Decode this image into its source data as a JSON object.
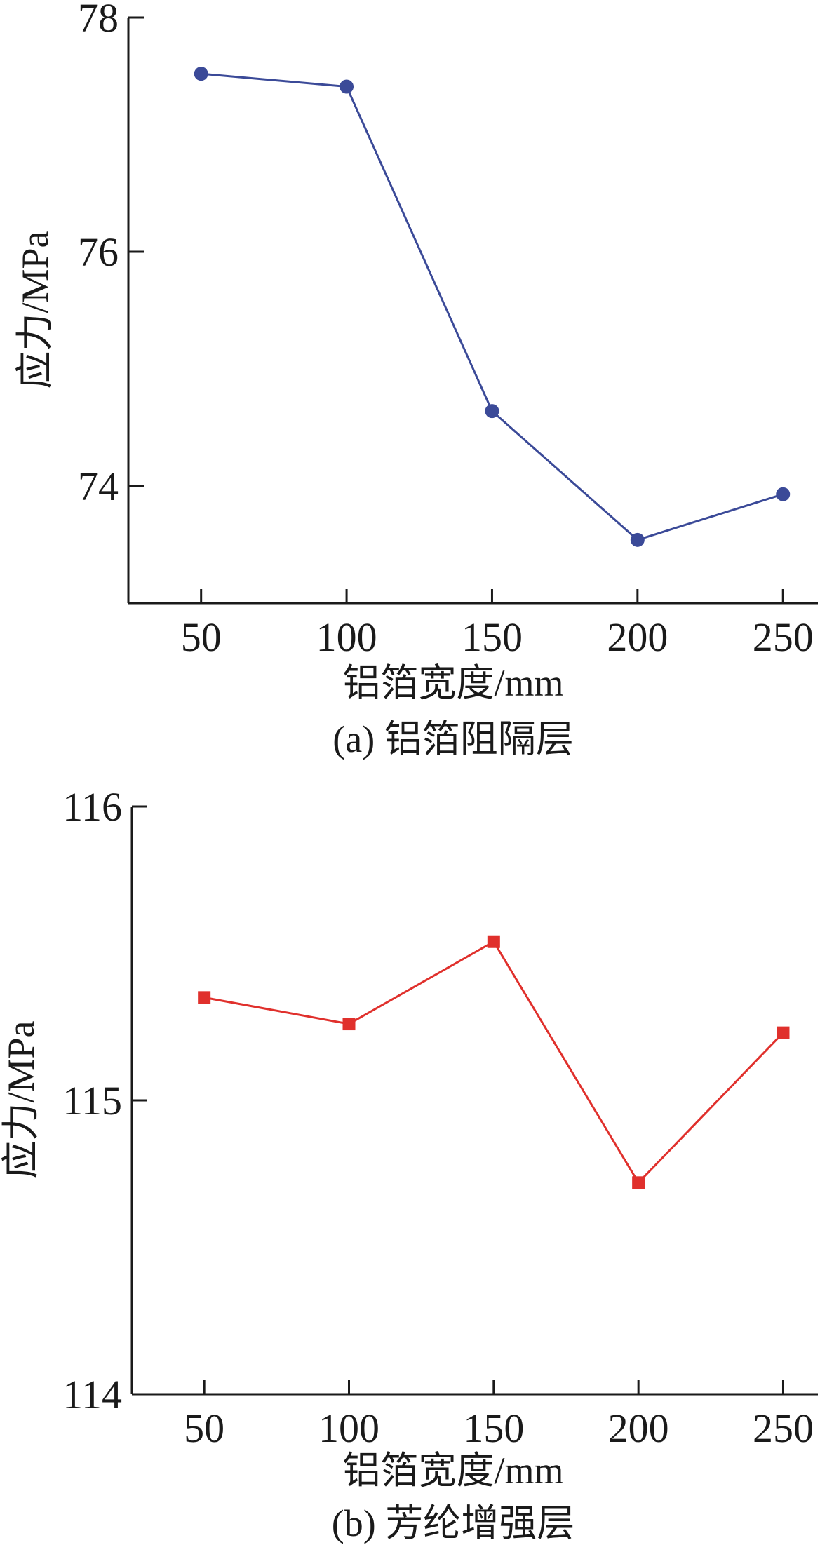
{
  "chart_data": [
    {
      "type": "line",
      "caption": "(a) 铝箔阻隔层",
      "xlabel": "铝箔宽度/mm",
      "ylabel": "应力/MPa",
      "x": [
        50,
        100,
        150,
        200,
        250
      ],
      "xticks": [
        "50",
        "100",
        "150",
        "200",
        "250"
      ],
      "xlim": [
        25,
        262
      ],
      "yticks": [
        "74",
        "76",
        "78"
      ],
      "ytick_values": [
        74,
        76,
        78
      ],
      "ylim": [
        73,
        78
      ],
      "grid": false,
      "series": [
        {
          "values": [
            77.52,
            77.41,
            74.64,
            73.54,
            73.93
          ],
          "color": "#3b4a98",
          "marker": "circle"
        }
      ]
    },
    {
      "type": "line",
      "caption": "(b) 芳纶增强层",
      "xlabel": "铝箔宽度/mm",
      "ylabel": "应力/MPa",
      "x": [
        50,
        100,
        150,
        200,
        250
      ],
      "xticks": [
        "50",
        "100",
        "150",
        "200",
        "250"
      ],
      "xlim": [
        25,
        262
      ],
      "yticks": [
        "114",
        "115",
        "116"
      ],
      "ytick_values": [
        114,
        115,
        116
      ],
      "ylim": [
        114,
        116
      ],
      "grid": false,
      "series": [
        {
          "values": [
            115.35,
            115.26,
            115.54,
            114.72,
            115.23
          ],
          "color": "#e0302c",
          "marker": "square"
        }
      ]
    }
  ]
}
